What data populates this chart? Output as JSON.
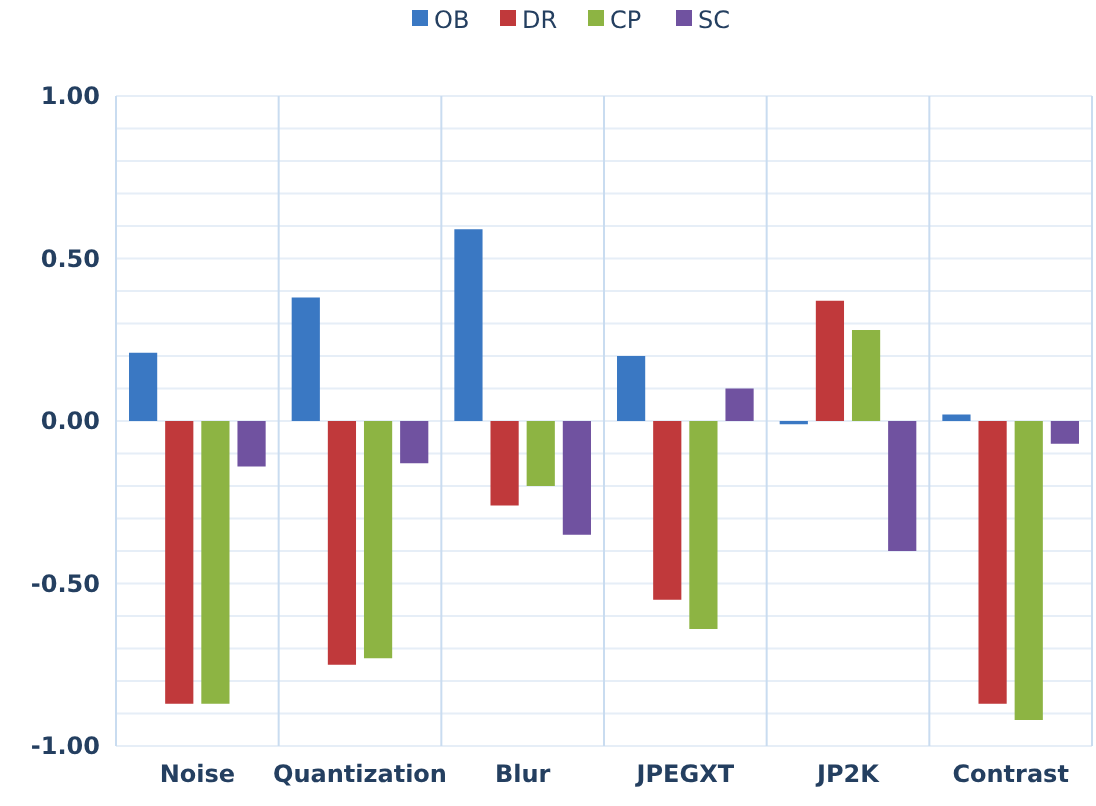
{
  "chart_data": {
    "type": "bar",
    "categories": [
      "Noise",
      "Quantization",
      "Blur",
      "JPEGXT",
      "JP2K",
      "Contrast"
    ],
    "series": [
      {
        "name": "OB",
        "color": "#3a78c3",
        "values": [
          0.21,
          0.38,
          0.59,
          0.2,
          -0.01,
          0.02
        ]
      },
      {
        "name": "DR",
        "color": "#c0393b",
        "values": [
          -0.87,
          -0.75,
          -0.26,
          -0.55,
          0.37,
          -0.87
        ]
      },
      {
        "name": "CP",
        "color": "#8db443",
        "values": [
          -0.87,
          -0.73,
          -0.2,
          -0.64,
          0.28,
          -0.92
        ]
      },
      {
        "name": "SC",
        "color": "#7052a0",
        "values": [
          -0.14,
          -0.13,
          -0.35,
          0.1,
          -0.4,
          -0.07
        ]
      }
    ],
    "ylim": [
      -1,
      1
    ],
    "yticks": [
      {
        "value": -1,
        "label": "-1.00"
      },
      {
        "value": -0.9,
        "label": null
      },
      {
        "value": -0.8,
        "label": null
      },
      {
        "value": -0.7,
        "label": null
      },
      {
        "value": -0.6,
        "label": null
      },
      {
        "value": -0.5,
        "label": "-0.50"
      },
      {
        "value": -0.4,
        "label": null
      },
      {
        "value": -0.3,
        "label": null
      },
      {
        "value": -0.2,
        "label": null
      },
      {
        "value": -0.1,
        "label": null
      },
      {
        "value": 0,
        "label": "0.00"
      },
      {
        "value": 0.1,
        "label": null
      },
      {
        "value": 0.2,
        "label": null
      },
      {
        "value": 0.3,
        "label": null
      },
      {
        "value": 0.4,
        "label": null
      },
      {
        "value": 0.5,
        "label": "0.50"
      },
      {
        "value": 0.6,
        "label": null
      },
      {
        "value": 0.7,
        "label": null
      },
      {
        "value": 0.8,
        "label": null
      },
      {
        "value": 0.9,
        "label": null
      },
      {
        "value": 1,
        "label": "1.00"
      }
    ],
    "grid": true,
    "legend": "top"
  }
}
